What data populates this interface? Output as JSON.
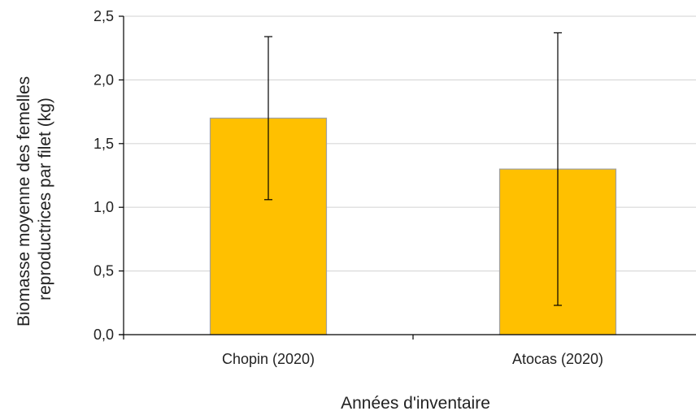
{
  "chart_data": {
    "type": "bar",
    "categories": [
      "Chopin (2020)",
      "Atocas (2020)"
    ],
    "values": [
      1.7,
      1.3
    ],
    "error_low": [
      1.06,
      0.23
    ],
    "error_high": [
      2.34,
      2.37
    ],
    "title": "",
    "xlabel": "Années d'inventaire",
    "ylabel_lines": [
      "Biomasse moyenne des femelles",
      "reproductrices par filet (kg)"
    ],
    "ylim": [
      0,
      2.5
    ],
    "yticks": [
      0.0,
      0.5,
      1.0,
      1.5,
      2.0,
      2.5
    ],
    "ytick_labels": [
      "0,0",
      "0,5",
      "1,0",
      "1,5",
      "2,0",
      "2,5"
    ],
    "grid": true,
    "legend": "none",
    "colors": {
      "bar_fill": "#FFC000",
      "bar_stroke": "#A0A0A0",
      "grid": "#D9D9D9",
      "axis": "#000000"
    }
  }
}
